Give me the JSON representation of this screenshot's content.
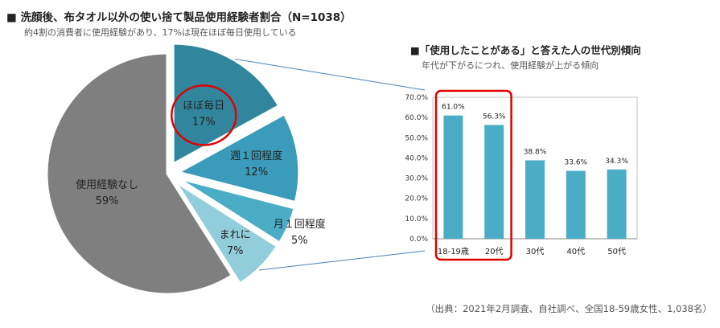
{
  "header": {
    "title": "■ 洗顔後、布タオル以外の使い捨て製品使用経験者割合（N=1038）",
    "subtitle": "約4割の消費者に使用経験があり、17%は現在ほぼ毎日使用している"
  },
  "bar_header": {
    "title": "■「使用したことがある」と答えた人の世代別傾向",
    "subtitle": "年代が下がるにつれ、使用経験が上がる傾向"
  },
  "source": "（出典：2021年2月調査、自社調べ、全国18-59歳女性、1,038名）",
  "colors": {
    "pie_none": "#7f7f7f",
    "pie_daily": "#31859c",
    "pie_weekly": "#3a9bba",
    "pie_monthly": "#4bacc6",
    "pie_rarely": "#92cddc",
    "bar": "#4bacc6",
    "highlight": "#e00000",
    "connector": "#4a7fb5"
  },
  "chart_data": [
    {
      "type": "pie",
      "slices": [
        {
          "label": "ほぼ毎日",
          "value": 17,
          "value_label": "17%"
        },
        {
          "label": "週１回程度",
          "value": 12,
          "value_label": "12%"
        },
        {
          "label": "月１回程度",
          "value": 5,
          "value_label": "5%"
        },
        {
          "label": "まれに",
          "value": 7,
          "value_label": "7%"
        },
        {
          "label": "使用経験なし",
          "value": 59,
          "value_label": "59%"
        }
      ],
      "highlighted": "ほぼ毎日"
    },
    {
      "type": "bar",
      "categories": [
        "18-19歳",
        "20代",
        "30代",
        "40代",
        "50代"
      ],
      "values": [
        61.0,
        56.3,
        38.8,
        33.6,
        34.3
      ],
      "value_labels": [
        "61.0%",
        "56.3%",
        "38.8%",
        "33.6%",
        "34.3%"
      ],
      "ylim": [
        0,
        70
      ],
      "yticks": [
        "0.0%",
        "10.0%",
        "20.0%",
        "30.0%",
        "40.0%",
        "50.0%",
        "60.0%",
        "70.0%"
      ],
      "highlighted_categories": [
        "18-19歳",
        "20代"
      ]
    }
  ]
}
